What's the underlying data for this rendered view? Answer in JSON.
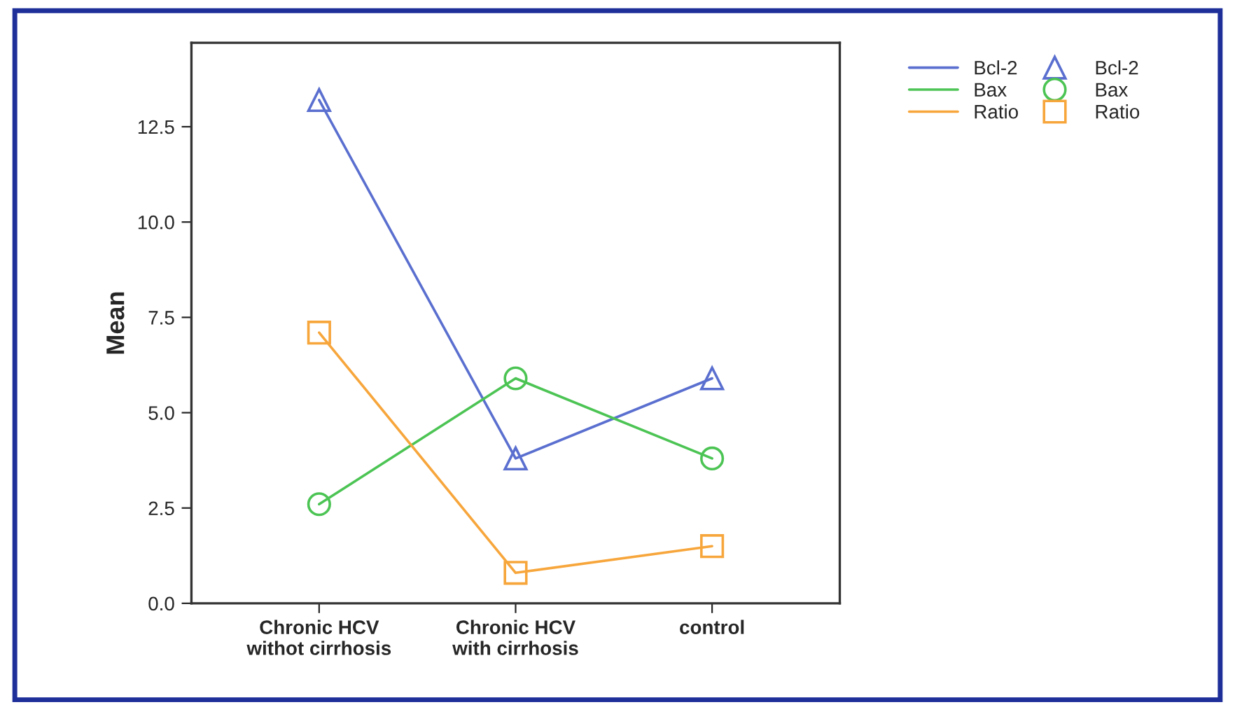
{
  "chart_data": {
    "type": "line",
    "ylabel": "Mean",
    "categories": [
      "Chronic HCV\nwithot cirrhosis",
      "Chronic HCV\nwith cirrhosis",
      "control"
    ],
    "series": [
      {
        "name": "Bcl-2",
        "color": "#5a6fcf",
        "marker": "triangle",
        "values": [
          13.2,
          3.8,
          5.9
        ]
      },
      {
        "name": "Bax",
        "color": "#4cc454",
        "marker": "circle",
        "values": [
          2.6,
          5.9,
          3.8
        ]
      },
      {
        "name": "Ratio",
        "color": "#f7a63c",
        "marker": "square",
        "values": [
          7.1,
          0.8,
          1.5
        ]
      }
    ],
    "ylim": [
      0,
      14.7
    ],
    "yticks": [
      {
        "value": 0,
        "label": "0.0"
      },
      {
        "value": 2.5,
        "label": "2.5"
      },
      {
        "value": 5,
        "label": "5.0"
      },
      {
        "value": 7.5,
        "label": "7.5"
      },
      {
        "value": 10,
        "label": "10.0"
      },
      {
        "value": 12.5,
        "label": "12.5"
      }
    ],
    "grid": false,
    "legend": "top right",
    "line_style": "solid"
  }
}
